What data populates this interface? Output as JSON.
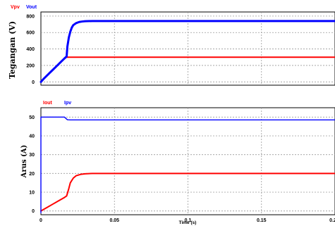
{
  "chart_data": [
    {
      "type": "line",
      "ylabel": "Tegangan (V)",
      "xlabel": "",
      "xlim": [
        0,
        0.2
      ],
      "ylim": [
        -40,
        850
      ],
      "xticks": [
        0,
        0.05,
        0.1,
        0.15,
        0.2
      ],
      "xtick_labels": [
        "",
        "",
        "",
        "",
        ""
      ],
      "yticks": [
        0,
        200,
        400,
        600,
        800
      ],
      "ytick_labels": [
        "0",
        "200",
        "400",
        "600",
        "800"
      ],
      "grid": true,
      "legend_position": "top-left",
      "series": [
        {
          "name": "Vpv",
          "color": "#ff0000",
          "width": 2,
          "points": [
            [
              0,
              0
            ],
            [
              0.002,
              40
            ],
            [
              0.004,
              75
            ],
            [
              0.006,
              110
            ],
            [
              0.008,
              145
            ],
            [
              0.01,
              180
            ],
            [
              0.012,
              215
            ],
            [
              0.014,
              250
            ],
            [
              0.016,
              285
            ],
            [
              0.0175,
              300
            ],
            [
              0.02,
              300
            ],
            [
              0.05,
              300
            ],
            [
              0.1,
              300
            ],
            [
              0.15,
              300
            ],
            [
              0.2,
              300
            ]
          ]
        },
        {
          "name": "Vout",
          "color": "#0000ff",
          "width": 3,
          "points": [
            [
              0,
              0
            ],
            [
              0.002,
              40
            ],
            [
              0.004,
              75
            ],
            [
              0.006,
              110
            ],
            [
              0.008,
              145
            ],
            [
              0.01,
              180
            ],
            [
              0.012,
              215
            ],
            [
              0.014,
              250
            ],
            [
              0.016,
              285
            ],
            [
              0.0175,
              310
            ],
            [
              0.018,
              430
            ],
            [
              0.019,
              540
            ],
            [
              0.02,
              610
            ],
            [
              0.021,
              660
            ],
            [
              0.022,
              690
            ],
            [
              0.024,
              715
            ],
            [
              0.026,
              728
            ],
            [
              0.028,
              734
            ],
            [
              0.03,
              738
            ],
            [
              0.035,
              740
            ],
            [
              0.05,
              740
            ],
            [
              0.1,
              740
            ],
            [
              0.15,
              740
            ],
            [
              0.2,
              740
            ]
          ]
        }
      ]
    },
    {
      "type": "line",
      "ylabel": "Arus (A)",
      "xlabel": "Time (s)",
      "xlim": [
        0,
        0.2
      ],
      "ylim": [
        -2,
        55
      ],
      "xticks": [
        0,
        0.05,
        0.1,
        0.15,
        0.2
      ],
      "xtick_labels": [
        "0",
        "0.05",
        "0.1",
        "0.15",
        "0.2"
      ],
      "yticks": [
        0,
        10,
        20,
        30,
        40,
        50
      ],
      "ytick_labels": [
        "0",
        "10",
        "20",
        "30",
        "40",
        "50"
      ],
      "grid": true,
      "legend_position": "top-left",
      "series": [
        {
          "name": "Iout",
          "color": "#ff0000",
          "width": 2,
          "points": [
            [
              0,
              0
            ],
            [
              0.004,
              1.8
            ],
            [
              0.008,
              3.6
            ],
            [
              0.012,
              5.4
            ],
            [
              0.016,
              7.2
            ],
            [
              0.0175,
              8
            ],
            [
              0.019,
              12
            ],
            [
              0.02,
              15
            ],
            [
              0.022,
              17.5
            ],
            [
              0.024,
              18.8
            ],
            [
              0.027,
              19.5
            ],
            [
              0.03,
              19.8
            ],
            [
              0.035,
              20
            ],
            [
              0.05,
              20
            ],
            [
              0.1,
              20
            ],
            [
              0.15,
              20
            ],
            [
              0.2,
              20
            ]
          ]
        },
        {
          "name": "Ipv",
          "color": "#0000ff",
          "width": 1.4,
          "points": [
            [
              0,
              -1
            ],
            [
              0,
              50
            ],
            [
              0.016,
              50
            ],
            [
              0.017,
              49.3
            ],
            [
              0.018,
              48.6
            ],
            [
              0.02,
              48.5
            ],
            [
              0.05,
              48.5
            ],
            [
              0.1,
              48.5
            ],
            [
              0.15,
              48.5
            ],
            [
              0.2,
              48.5
            ]
          ]
        }
      ]
    }
  ]
}
